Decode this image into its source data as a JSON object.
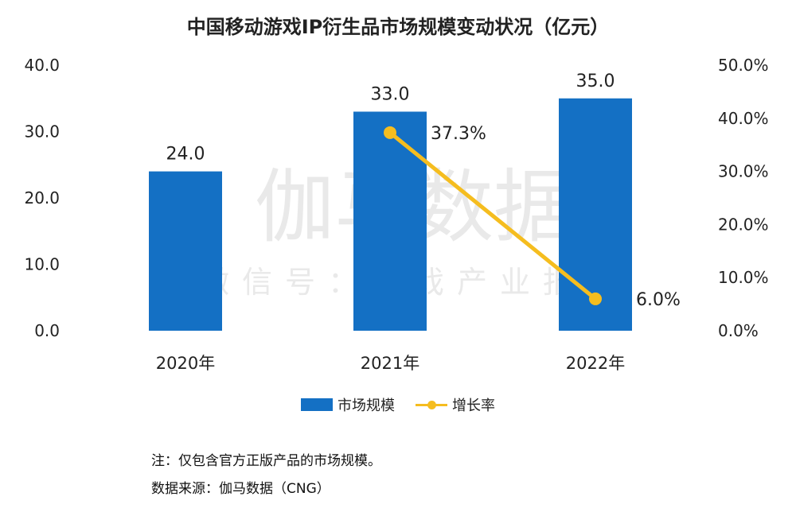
{
  "title": "中国移动游戏IP衍生品市场规模变动状况（亿元）",
  "notes": {
    "note": "注：仅包含官方正版产品的市场规模。",
    "source": "数据来源：伽马数据（CNG）"
  },
  "watermark": {
    "main": "伽马数据",
    "sub": "微信号：游戏产业报告"
  },
  "colors": {
    "bar": "#1470c4",
    "line": "#f5bd1f",
    "axis_text": "#222222",
    "watermark": "#e9e9e9"
  },
  "chart_data": {
    "type": "bar",
    "categories": [
      "2020年",
      "2021年",
      "2022年"
    ],
    "series": [
      {
        "name": "市场规模",
        "type": "bar",
        "axis": "left",
        "values": [
          24.0,
          33.0,
          35.0
        ],
        "labels": [
          "24.0",
          "33.0",
          "35.0"
        ]
      },
      {
        "name": "增长率",
        "type": "line",
        "axis": "right",
        "values": [
          null,
          37.3,
          6.0
        ],
        "labels": [
          "",
          "37.3%",
          "6.0%"
        ]
      }
    ],
    "y_left": {
      "min": 0,
      "max": 40,
      "ticks": [
        "0.0",
        "10.0",
        "20.0",
        "30.0",
        "40.0"
      ]
    },
    "y_right": {
      "min": 0,
      "max": 50,
      "ticks": [
        "0.0%",
        "10.0%",
        "20.0%",
        "30.0%",
        "40.0%",
        "50.0%"
      ]
    },
    "grid": false,
    "legend_position": "bottom"
  }
}
